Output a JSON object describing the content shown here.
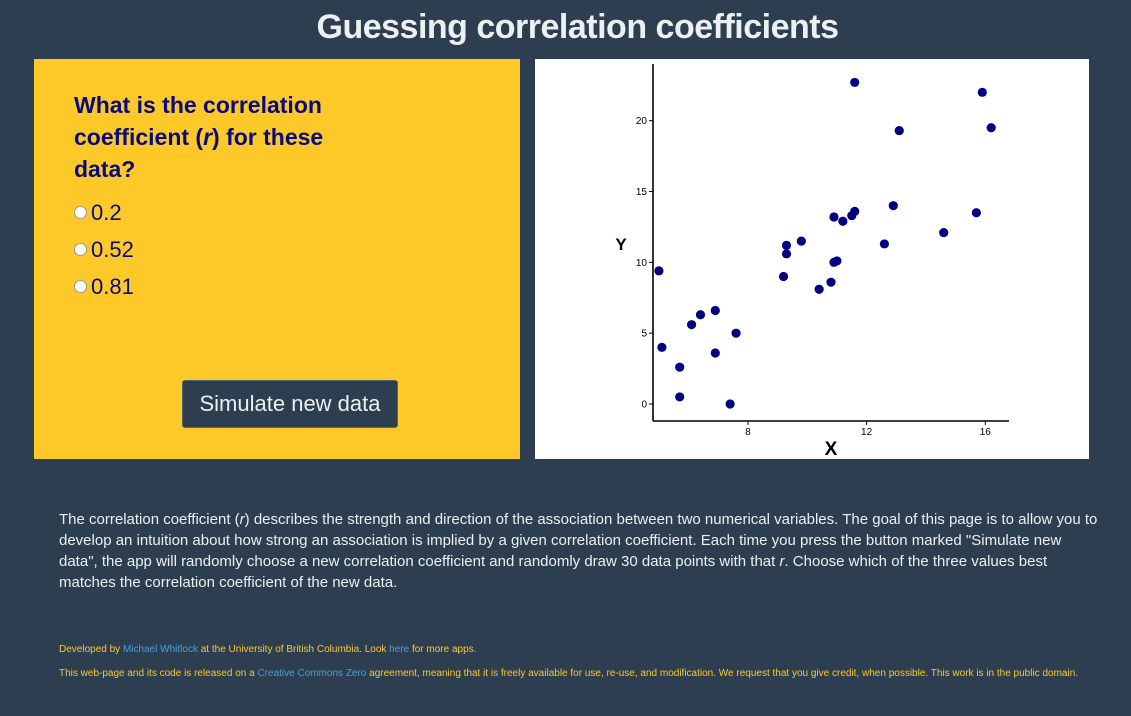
{
  "page": {
    "title": "Guessing correlation coefficients"
  },
  "question": {
    "text_part1": "What is the correlation coefficient (",
    "text_r": "r",
    "text_part2": ") for these data?",
    "options": [
      {
        "label": "0.2"
      },
      {
        "label": "0.52"
      },
      {
        "label": "0.81"
      }
    ],
    "simulate_button": "Simulate new data"
  },
  "chart_data": {
    "type": "scatter",
    "xlabel": "X",
    "ylabel": "Y",
    "xlim": [
      4.8,
      16.8
    ],
    "ylim": [
      -1.2,
      24
    ],
    "x_ticks": [
      8,
      12,
      16
    ],
    "y_ticks": [
      0,
      5,
      10,
      15,
      20
    ],
    "grid": false,
    "point_color": "#000080",
    "points": [
      [
        5.0,
        9.4
      ],
      [
        5.1,
        4.0
      ],
      [
        5.7,
        0.5
      ],
      [
        5.7,
        2.6
      ],
      [
        6.1,
        5.6
      ],
      [
        6.4,
        6.3
      ],
      [
        6.9,
        6.6
      ],
      [
        6.9,
        3.6
      ],
      [
        7.4,
        0.0
      ],
      [
        7.6,
        5.0
      ],
      [
        9.2,
        9.0
      ],
      [
        9.3,
        10.6
      ],
      [
        9.3,
        11.2
      ],
      [
        9.8,
        11.5
      ],
      [
        10.4,
        8.1
      ],
      [
        10.8,
        8.6
      ],
      [
        10.9,
        10.0
      ],
      [
        10.9,
        13.2
      ],
      [
        11.0,
        10.1
      ],
      [
        11.2,
        12.9
      ],
      [
        11.5,
        13.3
      ],
      [
        11.6,
        13.6
      ],
      [
        11.6,
        22.7
      ],
      [
        12.6,
        11.3
      ],
      [
        12.9,
        14.0
      ],
      [
        13.1,
        19.3
      ],
      [
        14.6,
        12.1
      ],
      [
        15.7,
        13.5
      ],
      [
        15.9,
        22.0
      ],
      [
        16.2,
        19.5
      ]
    ]
  },
  "description": {
    "part1": "The correlation coefficient (",
    "r1": "r",
    "part2": ") describes the strength and direction of the association between two numerical variables. The goal of this page is to allow you to develop an intuition about how strong an association is implied by a given correlation coefficient. Each time you press the button marked \"Simulate new data\", the app will randomly choose a new correlation coefficient and randomly draw 30 data points with that ",
    "r2": "r",
    "part3": ". Choose which of the three values best matches the correlation coefficient of the new data."
  },
  "credits": {
    "line1_prefix": "Developed by ",
    "author_link": "Michael Whitlock",
    "line1_middle": " at the University of British Columbia. Look ",
    "here_link": "here",
    "line1_suffix": " for more apps.",
    "line2_prefix": "This web-page and its code is released on a ",
    "cc_link": "Creative Commons Zero",
    "line2_suffix": " agreement, meaning that it is freely available for use, re-use, and modification. We request that you give credit, when possible. This work is in the public domain."
  }
}
